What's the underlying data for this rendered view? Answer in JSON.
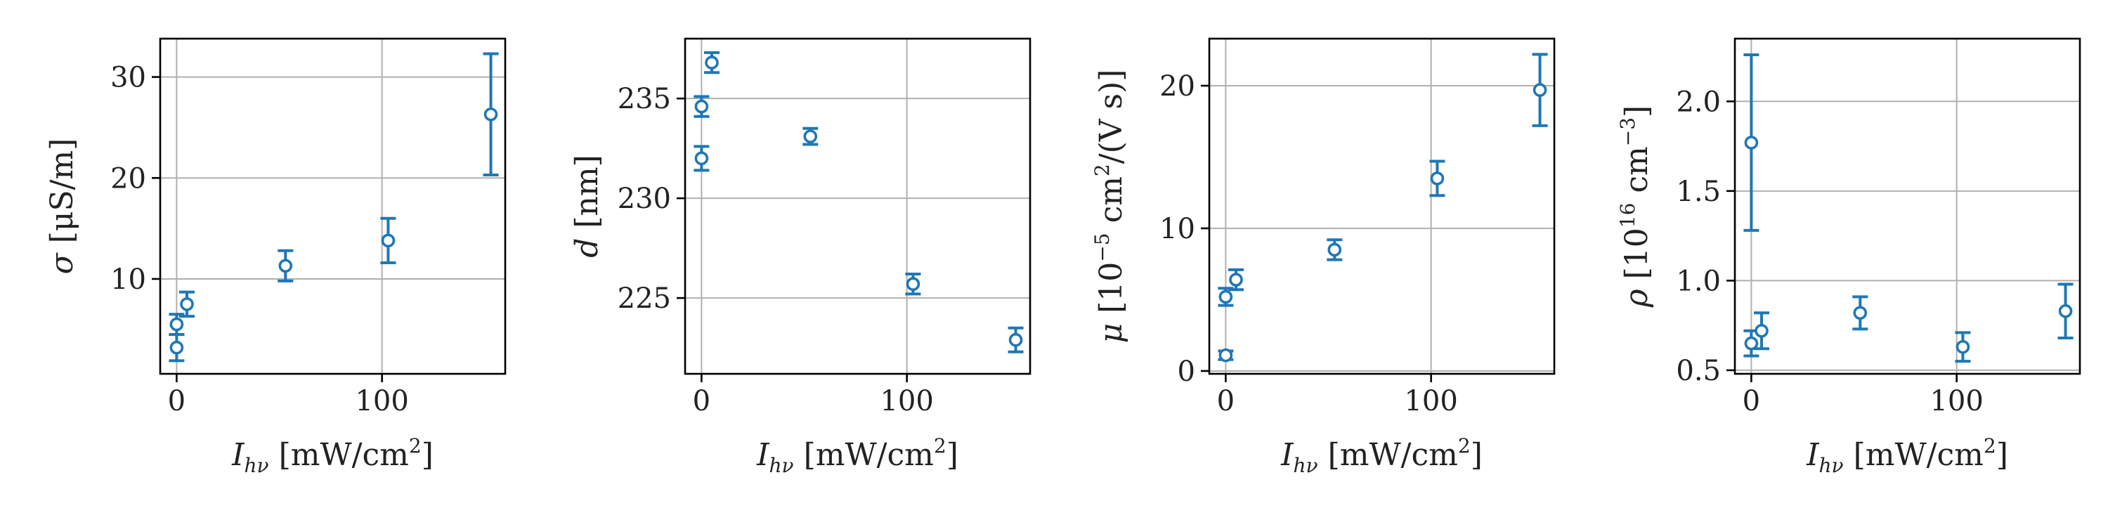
{
  "chart_data": [
    {
      "type": "scatter",
      "ylabel_symbol": "σ",
      "ylabel_unit": "[μS/m]",
      "xlabel_symbol": "I",
      "xlabel_sub": "hν",
      "xlabel_unit": "[mW/cm",
      "xlabel_unit_sup": "2",
      "xlabel_unit_tail": "]",
      "xlim": [
        -8,
        160
      ],
      "ylim": [
        0.6,
        33.8
      ],
      "xticks": [
        0,
        100
      ],
      "xtick_labels": [
        "0",
        "100"
      ],
      "yticks": [
        10,
        20,
        30
      ],
      "ytick_labels": [
        "10",
        "20",
        "30"
      ],
      "grid": true,
      "series": [
        {
          "points": [
            {
              "x": 0,
              "y": 3.2,
              "err": 1.3
            },
            {
              "x": 0,
              "y": 5.5,
              "err": 1.0
            },
            {
              "x": 5,
              "y": 7.5,
              "err": 1.2
            },
            {
              "x": 53,
              "y": 11.3,
              "err": 1.5
            },
            {
              "x": 103,
              "y": 13.8,
              "err": 2.2
            },
            {
              "x": 153,
              "y": 26.3,
              "err": 6.0
            }
          ]
        }
      ]
    },
    {
      "type": "scatter",
      "ylabel_symbol": "d",
      "ylabel_unit": "[nm]",
      "xlabel_symbol": "I",
      "xlabel_sub": "hν",
      "xlabel_unit": "[mW/cm",
      "xlabel_unit_sup": "2",
      "xlabel_unit_tail": "]",
      "xlim": [
        -8,
        160
      ],
      "ylim": [
        221.2,
        238.0
      ],
      "xticks": [
        0,
        100
      ],
      "xtick_labels": [
        "0",
        "100"
      ],
      "yticks": [
        225,
        230,
        235
      ],
      "ytick_labels": [
        "225",
        "230",
        "235"
      ],
      "grid": true,
      "series": [
        {
          "points": [
            {
              "x": 0,
              "y": 232.0,
              "err": 0.6
            },
            {
              "x": 0,
              "y": 234.6,
              "err": 0.5
            },
            {
              "x": 5,
              "y": 236.8,
              "err": 0.5
            },
            {
              "x": 53,
              "y": 233.1,
              "err": 0.4
            },
            {
              "x": 103,
              "y": 225.7,
              "err": 0.5
            },
            {
              "x": 153,
              "y": 222.9,
              "err": 0.6
            }
          ]
        }
      ]
    },
    {
      "type": "scatter",
      "ylabel_symbol": "μ",
      "ylabel_unit": "[10",
      "ylabel_unit_sup": "−5",
      "ylabel_unit_mid": " cm",
      "ylabel_unit_sup2": "2",
      "ylabel_unit_tail": "/(V s)]",
      "xlabel_symbol": "I",
      "xlabel_sub": "hν",
      "xlabel_unit": "[mW/cm",
      "xlabel_unit_sup": "2",
      "xlabel_unit_tail": "]",
      "xlim": [
        -8,
        160
      ],
      "ylim": [
        -0.2,
        23.3
      ],
      "xticks": [
        0,
        100
      ],
      "xtick_labels": [
        "0",
        "100"
      ],
      "yticks": [
        0,
        10,
        20
      ],
      "ytick_labels": [
        "0",
        "10",
        "20"
      ],
      "grid": true,
      "series": [
        {
          "points": [
            {
              "x": 0,
              "y": 1.1,
              "err": 0.3
            },
            {
              "x": 0,
              "y": 5.2,
              "err": 0.6
            },
            {
              "x": 5,
              "y": 6.4,
              "err": 0.7
            },
            {
              "x": 53,
              "y": 8.5,
              "err": 0.7
            },
            {
              "x": 103,
              "y": 13.5,
              "err": 1.2
            },
            {
              "x": 153,
              "y": 19.7,
              "err": 2.5
            }
          ]
        }
      ]
    },
    {
      "type": "scatter",
      "ylabel_symbol": "ρ",
      "ylabel_unit": "[10",
      "ylabel_unit_sup": "16",
      "ylabel_unit_mid": " cm",
      "ylabel_unit_sup2": "−3",
      "ylabel_unit_tail": "]",
      "xlabel_symbol": "I",
      "xlabel_sub": "hν",
      "xlabel_unit": "[mW/cm",
      "xlabel_unit_sup": "2",
      "xlabel_unit_tail": "]",
      "xlim": [
        -8,
        160
      ],
      "ylim": [
        0.48,
        2.35
      ],
      "xticks": [
        0,
        100
      ],
      "xtick_labels": [
        "0",
        "100"
      ],
      "yticks": [
        0.5,
        1.0,
        1.5,
        2.0
      ],
      "ytick_labels": [
        "0.5",
        "1.0",
        "1.5",
        "2.0"
      ],
      "grid": true,
      "series": [
        {
          "points": [
            {
              "x": 0,
              "y": 1.77,
              "err": 0.49
            },
            {
              "x": 0,
              "y": 0.65,
              "err": 0.07
            },
            {
              "x": 5,
              "y": 0.72,
              "err": 0.1
            },
            {
              "x": 53,
              "y": 0.82,
              "err": 0.09
            },
            {
              "x": 103,
              "y": 0.63,
              "err": 0.08
            },
            {
              "x": 153,
              "y": 0.83,
              "err": 0.15
            }
          ]
        }
      ]
    }
  ]
}
